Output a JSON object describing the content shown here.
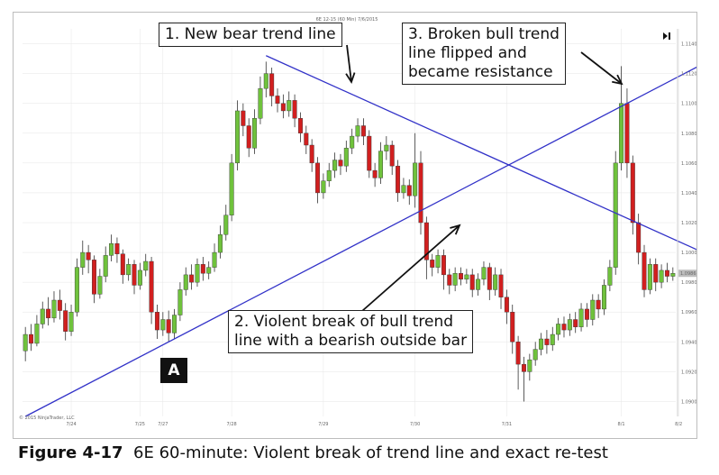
{
  "chart_title": "6E 12-15 (60 Min) 7/6/2015",
  "copyright": "© 2015 NinjaTrader, LLC",
  "caption": {
    "figure": "Figure 4-17",
    "text": "6E 60-minute: Violent break of trend line and exact re-test"
  },
  "marker_label": "A",
  "callouts": {
    "c1": "1. New bear trend line",
    "c2": "2. Violent break of bull trend\nline with a bearish outside bar",
    "c3": "3. Broken bull trend\nline flipped and\nbecame resistance"
  },
  "chart_data": {
    "type": "candlestick",
    "title": "6E 12-15 (60 Min) 7/6/2015",
    "x_tick_labels": [
      "7/24",
      "7/25",
      "7/27",
      "7/28",
      "7/29",
      "7/30",
      "7/31",
      "8/1",
      "8/2"
    ],
    "y_tick_labels": [
      "1.1140",
      "1.1120",
      "1.1100",
      "1.1080",
      "1.1060",
      "1.1040",
      "1.1020",
      "1.1000",
      "1.0980",
      "1.0960",
      "1.0940",
      "1.0920",
      "1.0900"
    ],
    "y_range": [
      1.089,
      1.115
    ],
    "last_price": "1.0986",
    "colors": {
      "up": "#6fc23c",
      "down": "#d11f1f",
      "wick": "#333333",
      "trendline": "#3232c8",
      "grid": "#e6e6e6"
    },
    "candles": [
      {
        "o": 1.0934,
        "c": 1.0945,
        "h": 1.095,
        "l": 1.0927
      },
      {
        "o": 1.0945,
        "c": 1.0939,
        "h": 1.0952,
        "l": 1.0934
      },
      {
        "o": 1.0939,
        "c": 1.0952,
        "h": 1.0958,
        "l": 1.0937
      },
      {
        "o": 1.0952,
        "c": 1.0962,
        "h": 1.0967,
        "l": 1.0949
      },
      {
        "o": 1.0962,
        "c": 1.0956,
        "h": 1.097,
        "l": 1.0951
      },
      {
        "o": 1.0956,
        "c": 1.0968,
        "h": 1.0974,
        "l": 1.0953
      },
      {
        "o": 1.0968,
        "c": 1.0961,
        "h": 1.0975,
        "l": 1.0955
      },
      {
        "o": 1.0961,
        "c": 1.0947,
        "h": 1.0966,
        "l": 1.0941
      },
      {
        "o": 1.0947,
        "c": 1.096,
        "h": 1.0965,
        "l": 1.0944
      },
      {
        "o": 1.096,
        "c": 1.099,
        "h": 1.0996,
        "l": 1.0957
      },
      {
        "o": 1.099,
        "c": 1.1,
        "h": 1.1008,
        "l": 1.0985
      },
      {
        "o": 1.1,
        "c": 1.0995,
        "h": 1.1005,
        "l": 1.0986
      },
      {
        "o": 1.0995,
        "c": 1.0972,
        "h": 1.0998,
        "l": 1.0966
      },
      {
        "o": 1.0972,
        "c": 1.0984,
        "h": 1.0989,
        "l": 1.0969
      },
      {
        "o": 1.0984,
        "c": 1.0998,
        "h": 1.1004,
        "l": 1.098
      },
      {
        "o": 1.0998,
        "c": 1.1006,
        "h": 1.1012,
        "l": 1.0994
      },
      {
        "o": 1.1006,
        "c": 1.0999,
        "h": 1.101,
        "l": 1.0993
      },
      {
        "o": 1.0999,
        "c": 1.0985,
        "h": 1.1002,
        "l": 1.0979
      },
      {
        "o": 1.0985,
        "c": 1.0992,
        "h": 1.0996,
        "l": 1.0981
      },
      {
        "o": 1.0992,
        "c": 1.0978,
        "h": 1.0995,
        "l": 1.0972
      },
      {
        "o": 1.0978,
        "c": 1.0988,
        "h": 1.0993,
        "l": 1.0975
      },
      {
        "o": 1.0988,
        "c": 1.0994,
        "h": 1.0999,
        "l": 1.0984
      },
      {
        "o": 1.0994,
        "c": 1.096,
        "h": 1.0997,
        "l": 1.0952
      },
      {
        "o": 1.096,
        "c": 1.0948,
        "h": 1.0965,
        "l": 1.0942
      },
      {
        "o": 1.0948,
        "c": 1.0955,
        "h": 1.096,
        "l": 1.0944
      },
      {
        "o": 1.0955,
        "c": 1.0946,
        "h": 1.0961,
        "l": 1.094
      },
      {
        "o": 1.0946,
        "c": 1.0958,
        "h": 1.0962,
        "l": 1.0942
      },
      {
        "o": 1.0958,
        "c": 1.0975,
        "h": 1.098,
        "l": 1.0954
      },
      {
        "o": 1.0975,
        "c": 1.0985,
        "h": 1.099,
        "l": 1.0971
      },
      {
        "o": 1.0985,
        "c": 1.098,
        "h": 1.0992,
        "l": 1.0975
      },
      {
        "o": 1.098,
        "c": 1.0992,
        "h": 1.0996,
        "l": 1.0977
      },
      {
        "o": 1.0992,
        "c": 1.0986,
        "h": 1.0997,
        "l": 1.0981
      },
      {
        "o": 1.0986,
        "c": 1.099,
        "h": 1.0994,
        "l": 1.0982
      },
      {
        "o": 1.099,
        "c": 1.1,
        "h": 1.1006,
        "l": 1.0987
      },
      {
        "o": 1.1,
        "c": 1.1012,
        "h": 1.1018,
        "l": 1.0996
      },
      {
        "o": 1.1012,
        "c": 1.1025,
        "h": 1.1032,
        "l": 1.1008
      },
      {
        "o": 1.1025,
        "c": 1.106,
        "h": 1.1066,
        "l": 1.1021
      },
      {
        "o": 1.106,
        "c": 1.1095,
        "h": 1.1102,
        "l": 1.1055
      },
      {
        "o": 1.1095,
        "c": 1.1085,
        "h": 1.11,
        "l": 1.1078
      },
      {
        "o": 1.1085,
        "c": 1.107,
        "h": 1.109,
        "l": 1.1064
      },
      {
        "o": 1.107,
        "c": 1.109,
        "h": 1.1096,
        "l": 1.1066
      },
      {
        "o": 1.109,
        "c": 1.111,
        "h": 1.1118,
        "l": 1.1086
      },
      {
        "o": 1.111,
        "c": 1.112,
        "h": 1.1128,
        "l": 1.1104
      },
      {
        "o": 1.112,
        "c": 1.1105,
        "h": 1.1124,
        "l": 1.1098
      },
      {
        "o": 1.1105,
        "c": 1.11,
        "h": 1.111,
        "l": 1.1094
      },
      {
        "o": 1.11,
        "c": 1.1095,
        "h": 1.1106,
        "l": 1.109
      },
      {
        "o": 1.1095,
        "c": 1.1102,
        "h": 1.1108,
        "l": 1.1091
      },
      {
        "o": 1.1102,
        "c": 1.109,
        "h": 1.1106,
        "l": 1.1084
      },
      {
        "o": 1.109,
        "c": 1.108,
        "h": 1.1094,
        "l": 1.1074
      },
      {
        "o": 1.108,
        "c": 1.1072,
        "h": 1.1085,
        "l": 1.1066
      },
      {
        "o": 1.1072,
        "c": 1.106,
        "h": 1.1076,
        "l": 1.1054
      },
      {
        "o": 1.106,
        "c": 1.104,
        "h": 1.1064,
        "l": 1.1033
      },
      {
        "o": 1.104,
        "c": 1.1048,
        "h": 1.1053,
        "l": 1.1036
      },
      {
        "o": 1.1048,
        "c": 1.1055,
        "h": 1.106,
        "l": 1.1044
      },
      {
        "o": 1.1055,
        "c": 1.1062,
        "h": 1.1067,
        "l": 1.105
      },
      {
        "o": 1.1062,
        "c": 1.1058,
        "h": 1.1066,
        "l": 1.1052
      },
      {
        "o": 1.1058,
        "c": 1.107,
        "h": 1.1075,
        "l": 1.1054
      },
      {
        "o": 1.107,
        "c": 1.1078,
        "h": 1.1083,
        "l": 1.1066
      },
      {
        "o": 1.1078,
        "c": 1.1085,
        "h": 1.109,
        "l": 1.1074
      },
      {
        "o": 1.1085,
        "c": 1.1078,
        "h": 1.109,
        "l": 1.1072
      },
      {
        "o": 1.1078,
        "c": 1.1055,
        "h": 1.1082,
        "l": 1.105
      },
      {
        "o": 1.1055,
        "c": 1.105,
        "h": 1.106,
        "l": 1.1044
      },
      {
        "o": 1.105,
        "c": 1.1068,
        "h": 1.1074,
        "l": 1.1046
      },
      {
        "o": 1.1068,
        "c": 1.1072,
        "h": 1.1078,
        "l": 1.1062
      },
      {
        "o": 1.1072,
        "c": 1.1058,
        "h": 1.1075,
        "l": 1.1052
      },
      {
        "o": 1.1058,
        "c": 1.104,
        "h": 1.1062,
        "l": 1.1034
      },
      {
        "o": 1.104,
        "c": 1.1045,
        "h": 1.105,
        "l": 1.1036
      },
      {
        "o": 1.1045,
        "c": 1.1038,
        "h": 1.1049,
        "l": 1.1032
      },
      {
        "o": 1.1038,
        "c": 1.106,
        "h": 1.108,
        "l": 1.103
      },
      {
        "o": 1.106,
        "c": 1.102,
        "h": 1.1068,
        "l": 1.1012
      },
      {
        "o": 1.102,
        "c": 1.0995,
        "h": 1.1024,
        "l": 1.0982
      },
      {
        "o": 1.0995,
        "c": 1.099,
        "h": 1.0999,
        "l": 1.0984
      },
      {
        "o": 1.099,
        "c": 1.0998,
        "h": 1.1002,
        "l": 1.0986
      },
      {
        "o": 1.0998,
        "c": 1.0985,
        "h": 1.1002,
        "l": 1.0975
      },
      {
        "o": 1.0985,
        "c": 1.0978,
        "h": 1.0989,
        "l": 1.0972
      },
      {
        "o": 1.0978,
        "c": 1.0986,
        "h": 1.099,
        "l": 1.0974
      },
      {
        "o": 1.0986,
        "c": 1.0982,
        "h": 1.099,
        "l": 1.0978
      },
      {
        "o": 1.0982,
        "c": 1.0985,
        "h": 1.0989,
        "l": 1.0979
      },
      {
        "o": 1.0985,
        "c": 1.0975,
        "h": 1.0989,
        "l": 1.097
      },
      {
        "o": 1.0975,
        "c": 1.0982,
        "h": 1.0986,
        "l": 1.0971
      },
      {
        "o": 1.0982,
        "c": 1.099,
        "h": 1.0994,
        "l": 1.0978
      },
      {
        "o": 1.099,
        "c": 1.0975,
        "h": 1.0993,
        "l": 1.0968
      },
      {
        "o": 1.0975,
        "c": 1.0985,
        "h": 1.099,
        "l": 1.0971
      },
      {
        "o": 1.0985,
        "c": 1.097,
        "h": 1.0989,
        "l": 1.0962
      },
      {
        "o": 1.097,
        "c": 1.096,
        "h": 1.0975,
        "l": 1.0952
      },
      {
        "o": 1.096,
        "c": 1.094,
        "h": 1.0965,
        "l": 1.0932
      },
      {
        "o": 1.094,
        "c": 1.0925,
        "h": 1.0944,
        "l": 1.0908
      },
      {
        "o": 1.0925,
        "c": 1.092,
        "h": 1.093,
        "l": 1.09
      },
      {
        "o": 1.092,
        "c": 1.0928,
        "h": 1.0932,
        "l": 1.0914
      },
      {
        "o": 1.0928,
        "c": 1.0935,
        "h": 1.094,
        "l": 1.0924
      },
      {
        "o": 1.0935,
        "c": 1.0942,
        "h": 1.0946,
        "l": 1.0931
      },
      {
        "o": 1.0942,
        "c": 1.0938,
        "h": 1.0948,
        "l": 1.0932
      },
      {
        "o": 1.0938,
        "c": 1.0945,
        "h": 1.095,
        "l": 1.0934
      },
      {
        "o": 1.0945,
        "c": 1.0952,
        "h": 1.0956,
        "l": 1.0941
      },
      {
        "o": 1.0952,
        "c": 1.0948,
        "h": 1.0957,
        "l": 1.0943
      },
      {
        "o": 1.0948,
        "c": 1.0955,
        "h": 1.0959,
        "l": 1.0944
      },
      {
        "o": 1.0955,
        "c": 1.095,
        "h": 1.096,
        "l": 1.0946
      },
      {
        "o": 1.095,
        "c": 1.0962,
        "h": 1.0966,
        "l": 1.0947
      },
      {
        "o": 1.0962,
        "c": 1.0955,
        "h": 1.0966,
        "l": 1.095
      },
      {
        "o": 1.0955,
        "c": 1.0968,
        "h": 1.0972,
        "l": 1.0951
      },
      {
        "o": 1.0968,
        "c": 1.0962,
        "h": 1.0972,
        "l": 1.0956
      },
      {
        "o": 1.0962,
        "c": 1.0978,
        "h": 1.0982,
        "l": 1.0958
      },
      {
        "o": 1.0978,
        "c": 1.099,
        "h": 1.0995,
        "l": 1.0974
      },
      {
        "o": 1.099,
        "c": 1.106,
        "h": 1.1068,
        "l": 1.0985
      },
      {
        "o": 1.106,
        "c": 1.11,
        "h": 1.1125,
        "l": 1.1055
      },
      {
        "o": 1.11,
        "c": 1.106,
        "h": 1.111,
        "l": 1.105
      },
      {
        "o": 1.106,
        "c": 1.102,
        "h": 1.1065,
        "l": 1.1012
      },
      {
        "o": 1.102,
        "c": 1.1,
        "h": 1.1026,
        "l": 1.0992
      },
      {
        "o": 1.1,
        "c": 1.0975,
        "h": 1.1005,
        "l": 1.097
      },
      {
        "o": 1.0975,
        "c": 1.0992,
        "h": 1.0996,
        "l": 1.0972
      },
      {
        "o": 1.0992,
        "c": 1.098,
        "h": 1.0996,
        "l": 1.0974
      },
      {
        "o": 1.098,
        "c": 1.0988,
        "h": 1.0992,
        "l": 1.0976
      },
      {
        "o": 1.0988,
        "c": 1.0984,
        "h": 1.0993,
        "l": 1.098
      },
      {
        "o": 1.0984,
        "c": 1.0986,
        "h": 1.099,
        "l": 1.0981
      }
    ],
    "trendlines": [
      {
        "name": "bull",
        "from_index": 0,
        "from_price": 1.089,
        "to_index": 120,
        "to_price": 1.113
      },
      {
        "name": "bear",
        "from_index": 42,
        "from_price": 1.1132,
        "to_index": 120,
        "to_price": 1.0997
      }
    ]
  }
}
